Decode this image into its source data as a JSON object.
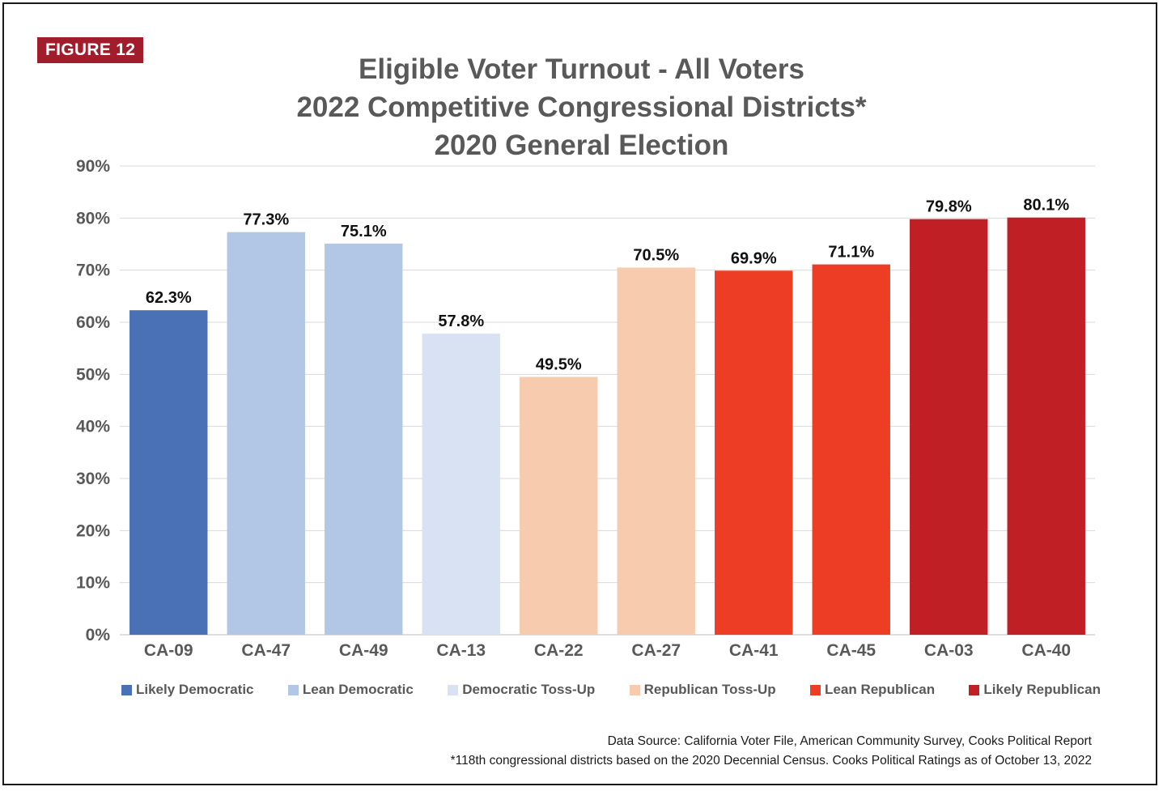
{
  "figure_label": "FIGURE 12",
  "title_lines": [
    "Eligible Voter Turnout - All Voters",
    "2022 Competitive Congressional Districts*",
    "2020 General Election"
  ],
  "chart_data": {
    "type": "bar",
    "title": "Eligible Voter Turnout - All Voters / 2022 Competitive Congressional Districts* / 2020 General Election",
    "xlabel": "",
    "ylabel": "",
    "ylim": [
      0,
      90
    ],
    "y_ticks": [
      "0%",
      "10%",
      "20%",
      "30%",
      "40%",
      "50%",
      "60%",
      "70%",
      "80%",
      "90%"
    ],
    "grid": true,
    "categories": [
      "CA-09",
      "CA-47",
      "CA-49",
      "CA-13",
      "CA-22",
      "CA-27",
      "CA-41",
      "CA-45",
      "CA-03",
      "CA-40"
    ],
    "values": [
      62.3,
      77.3,
      75.1,
      57.8,
      49.5,
      70.5,
      69.9,
      71.1,
      79.8,
      80.1
    ],
    "data_labels": [
      "62.3%",
      "77.3%",
      "75.1%",
      "57.8%",
      "49.5%",
      "70.5%",
      "69.9%",
      "71.1%",
      "79.8%",
      "80.1%"
    ],
    "bar_groups": [
      0,
      1,
      1,
      2,
      3,
      3,
      4,
      4,
      5,
      5
    ],
    "legend_position": "bottom",
    "legend": [
      {
        "label": "Likely Democratic",
        "color": "#4a70b5"
      },
      {
        "label": "Lean Democratic",
        "color": "#b2c6e5"
      },
      {
        "label": "Democratic Toss-Up",
        "color": "#d9e2f3"
      },
      {
        "label": "Republican Toss-Up",
        "color": "#f7cbae"
      },
      {
        "label": "Lean Republican",
        "color": "#ee3d25"
      },
      {
        "label": "Likely Republican",
        "color": "#c01f26"
      }
    ]
  },
  "source_lines": [
    "Data Source: California Voter File, American Community Survey, Cooks Political Report",
    "*118th congressional districts based on the 2020 Decennial Census. Cooks Political Ratings as of October 13, 2022"
  ],
  "colors": {
    "badge": "#a21d2c",
    "text": "#595959",
    "grid": "#d9d9d9"
  }
}
